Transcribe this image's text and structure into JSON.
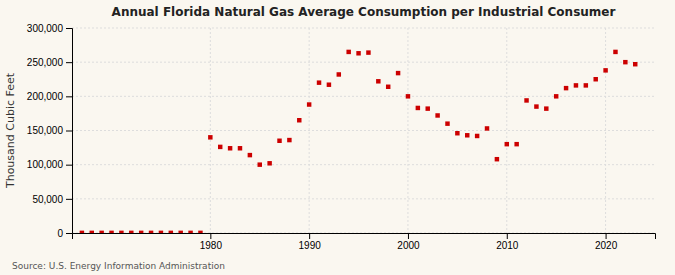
{
  "chart_data": {
    "type": "scatter",
    "title": "Annual Florida Natural Gas Average Consumption per Industrial Consumer",
    "ylabel": "Thousand Cubic Feet",
    "source": "Source: U.S. Energy Information Administration",
    "x": [
      1967,
      1968,
      1969,
      1970,
      1971,
      1972,
      1973,
      1974,
      1975,
      1976,
      1977,
      1978,
      1979,
      1980,
      1981,
      1982,
      1983,
      1984,
      1985,
      1986,
      1987,
      1988,
      1989,
      1990,
      1991,
      1992,
      1993,
      1994,
      1995,
      1996,
      1997,
      1998,
      1999,
      2000,
      2001,
      2002,
      2003,
      2004,
      2005,
      2006,
      2007,
      2008,
      2009,
      2010,
      2011,
      2012,
      2013,
      2014,
      2015,
      2016,
      2017,
      2018,
      2019,
      2020,
      2021,
      2022,
      2023
    ],
    "values": [
      200,
      200,
      200,
      200,
      200,
      200,
      200,
      200,
      200,
      200,
      200,
      200,
      200,
      140000,
      126000,
      124000,
      124000,
      114000,
      100000,
      102000,
      135000,
      136000,
      165000,
      188000,
      220000,
      217000,
      232000,
      265000,
      263000,
      264000,
      222000,
      214000,
      234000,
      200000,
      183000,
      182000,
      172000,
      160000,
      146000,
      143000,
      142000,
      153000,
      108000,
      130000,
      130000,
      194000,
      185000,
      182000,
      200000,
      212000,
      216000,
      216000,
      225000,
      238000,
      265000,
      250000,
      247000
    ],
    "color": "#cc0000",
    "marker": "square",
    "xlim": [
      1966,
      2025
    ],
    "ylim": [
      0,
      300000
    ],
    "xticks": [
      1980,
      1990,
      2000,
      2010,
      2020
    ],
    "yticks": [
      0,
      {
        "value": 50000,
        "label": "50,000"
      },
      {
        "value": 100000,
        "label": "100,000"
      },
      {
        "value": 150000,
        "label": "150,000"
      },
      {
        "value": 200000,
        "label": "200,000"
      },
      {
        "value": 250000,
        "label": "250,000"
      },
      {
        "value": 300000,
        "label": "300,000"
      }
    ],
    "grid": true
  }
}
